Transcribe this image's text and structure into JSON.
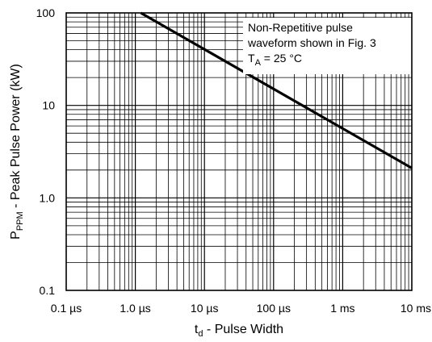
{
  "chart_data": {
    "type": "line",
    "xscale": "log",
    "yscale": "log",
    "xlim": [
      1e-07,
      0.01
    ],
    "ylim": [
      0.1,
      100
    ],
    "grid": true,
    "x_tick_values": [
      1e-07,
      1e-06,
      1e-05,
      0.0001,
      0.001,
      0.01
    ],
    "x_tick_labels": [
      "0.1 µs",
      "1.0 µs",
      "10 µs",
      "100 µs",
      "1 ms",
      "10 ms"
    ],
    "y_tick_values": [
      0.1,
      1,
      10,
      100
    ],
    "y_tick_labels": [
      "0.1",
      "1.0",
      "10",
      "100"
    ],
    "xlabel": {
      "main": "t",
      "sub": "d",
      "rest": " - Pulse Width"
    },
    "ylabel": {
      "main": "P",
      "sub": "PPM",
      "rest": " - Peak Pulse Power (kW)"
    },
    "annotation": {
      "line1": "Non-Repetitive pulse",
      "line2": "waveform shown in Fig. 3",
      "line3_main": "T",
      "line3_sub": "A",
      "line3_rest": " = 25 °C"
    },
    "series": [
      {
        "x": [
          1.2e-06,
          0.01
        ],
        "y": [
          100,
          2.1
        ]
      }
    ],
    "colors": {
      "line": "#000000",
      "grid": "#000000",
      "background": "#ffffff"
    }
  }
}
